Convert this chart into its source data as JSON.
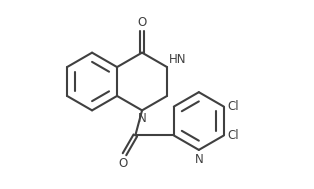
{
  "bg_color": "#ffffff",
  "line_color": "#404040",
  "text_color": "#404040",
  "line_width": 1.5,
  "font_size": 8.5,
  "fig_width": 3.14,
  "fig_height": 1.89,
  "dpi": 100,
  "xlim": [
    -1.0,
    8.5
  ],
  "ylim": [
    -0.5,
    6.0
  ]
}
